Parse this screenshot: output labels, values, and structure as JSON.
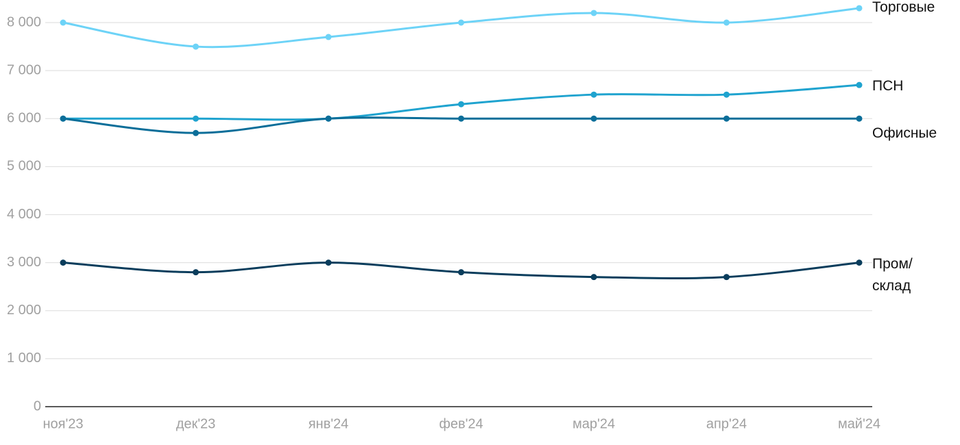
{
  "chart_data": {
    "type": "line",
    "categories": [
      "ноя'23",
      "дек'23",
      "янв'24",
      "фев'24",
      "мар'24",
      "апр'24",
      "май'24"
    ],
    "series": [
      {
        "name": "Торговые",
        "color": "#6dd3f7",
        "values": [
          8000,
          7500,
          7700,
          8000,
          8200,
          8000,
          8300
        ]
      },
      {
        "name": "ПСН",
        "color": "#1fa3cf",
        "values": [
          6000,
          6000,
          6000,
          6300,
          6500,
          6500,
          6700
        ]
      },
      {
        "name": "Офисные",
        "color": "#0b6e99",
        "values": [
          6000,
          5700,
          6000,
          6000,
          6000,
          6000,
          6000
        ]
      },
      {
        "name": "Пром/ склад",
        "color": "#0a3d5c",
        "values": [
          3000,
          2800,
          3000,
          2800,
          2700,
          2700,
          3000
        ]
      }
    ],
    "ylim": [
      0,
      8400
    ],
    "yticks": [
      0,
      {
        "value": 1000,
        "label": "1 000"
      },
      {
        "value": 2000,
        "label": "2 000"
      },
      {
        "value": 3000,
        "label": "3 000"
      },
      {
        "value": 4000,
        "label": "4 000"
      },
      {
        "value": 5000,
        "label": "5 000"
      },
      {
        "value": 6000,
        "label": "6 000"
      },
      {
        "value": 7000,
        "label": "7 000"
      },
      {
        "value": 8000,
        "label": "8 000"
      }
    ],
    "grid": true
  }
}
